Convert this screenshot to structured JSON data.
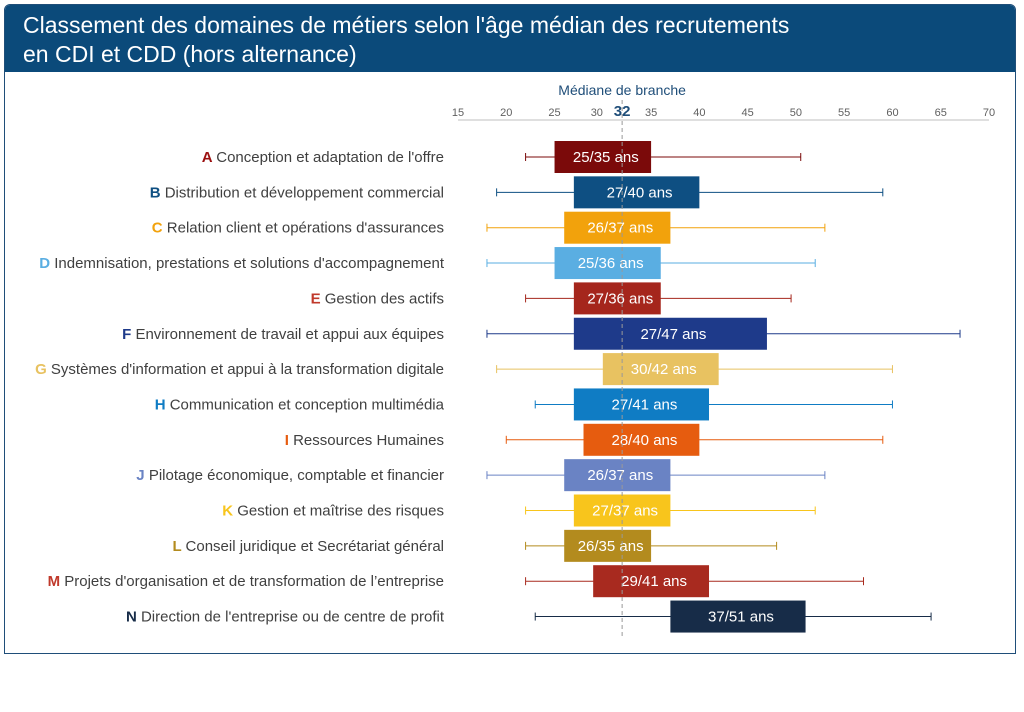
{
  "title_line1": "Classement des domaines de métiers selon l'âge médian des recrutements",
  "title_line2": "en CDI et CDD (hors alternance)",
  "chart_data": {
    "type": "boxplot-range",
    "median_label": "Médiane de branche",
    "median_value": "32",
    "median": 32,
    "xlim": [
      15,
      70
    ],
    "ticks": [
      15,
      20,
      25,
      30,
      35,
      40,
      45,
      50,
      55,
      60,
      65,
      70
    ],
    "categories": [
      {
        "letter": "A",
        "name": "Conception et adaptation de l'offre",
        "color": "#7b0a0a",
        "letter_color": "#9b1010",
        "min": 22,
        "q1": 25,
        "q3": 35,
        "max": 50.5,
        "label": "25/35 ans"
      },
      {
        "letter": "B",
        "name": "Distribution et développement commercial",
        "color": "#0e4f82",
        "letter_color": "#0e4f82",
        "min": 19,
        "q1": 27,
        "q3": 40,
        "max": 59,
        "label": "27/40 ans"
      },
      {
        "letter": "C",
        "name": "Relation client et opérations d'assurances",
        "color": "#f2a20c",
        "letter_color": "#f2a20c",
        "min": 18,
        "q1": 26,
        "q3": 37,
        "max": 53,
        "label": "26/37 ans"
      },
      {
        "letter": "D",
        "name": "Indemnisation, prestations et solutions d'accompagnement",
        "color": "#5aaee2",
        "letter_color": "#5aaee2",
        "min": 18,
        "q1": 25,
        "q3": 36,
        "max": 52,
        "label": "25/36 ans"
      },
      {
        "letter": "E",
        "name": "Gestion des actifs",
        "color": "#a5261c",
        "letter_color": "#c0392b",
        "min": 22,
        "q1": 27,
        "q3": 36,
        "max": 49.5,
        "label": "27/36 ans"
      },
      {
        "letter": "F",
        "name": "Environnement de travail et appui aux équipes",
        "color": "#1e3a8a",
        "letter_color": "#1e3a8a",
        "min": 18,
        "q1": 27,
        "q3": 47,
        "max": 67,
        "label": "27/47 ans"
      },
      {
        "letter": "G",
        "name": "Systèmes d'information et appui à la transformation digitale",
        "color": "#e8c261",
        "letter_color": "#e8c261",
        "min": 19,
        "q1": 30,
        "q3": 42,
        "max": 60,
        "label": "30/42 ans"
      },
      {
        "letter": "H",
        "name": "Communication et conception multimédia",
        "color": "#0f7cc4",
        "letter_color": "#0f7cc4",
        "min": 23,
        "q1": 27,
        "q3": 41,
        "max": 60,
        "label": "27/41 ans"
      },
      {
        "letter": "I",
        "name": "Ressources Humaines",
        "color": "#e65c0f",
        "letter_color": "#e65c0f",
        "min": 20,
        "q1": 28,
        "q3": 40,
        "max": 59,
        "label": "28/40 ans"
      },
      {
        "letter": "J",
        "name": "Pilotage économique, comptable et financier",
        "color": "#6a83c4",
        "letter_color": "#6a83c4",
        "min": 18,
        "q1": 26,
        "q3": 37,
        "max": 53,
        "label": "26/37 ans"
      },
      {
        "letter": "K",
        "name": "Gestion et maîtrise des risques",
        "color": "#f8c51c",
        "letter_color": "#f8c51c",
        "min": 22,
        "q1": 27,
        "q3": 37,
        "max": 52,
        "label": "27/37 ans"
      },
      {
        "letter": "L",
        "name": "Conseil juridique et Secrétariat général",
        "color": "#b38b1e",
        "letter_color": "#b38b1e",
        "min": 22,
        "q1": 26,
        "q3": 35,
        "max": 48,
        "label": "26/35 ans"
      },
      {
        "letter": "M",
        "name": "Projets d'organisation et de transformation de l’entreprise",
        "color": "#a82a1f",
        "letter_color": "#c0392b",
        "min": 22,
        "q1": 29,
        "q3": 41,
        "max": 57,
        "label": "29/41 ans"
      },
      {
        "letter": "N",
        "name": "Direction de l'entreprise ou de centre de profit",
        "color": "#172c48",
        "letter_color": "#172c48",
        "min": 23,
        "q1": 37,
        "q3": 51,
        "max": 64,
        "label": "37/51 ans"
      }
    ]
  }
}
